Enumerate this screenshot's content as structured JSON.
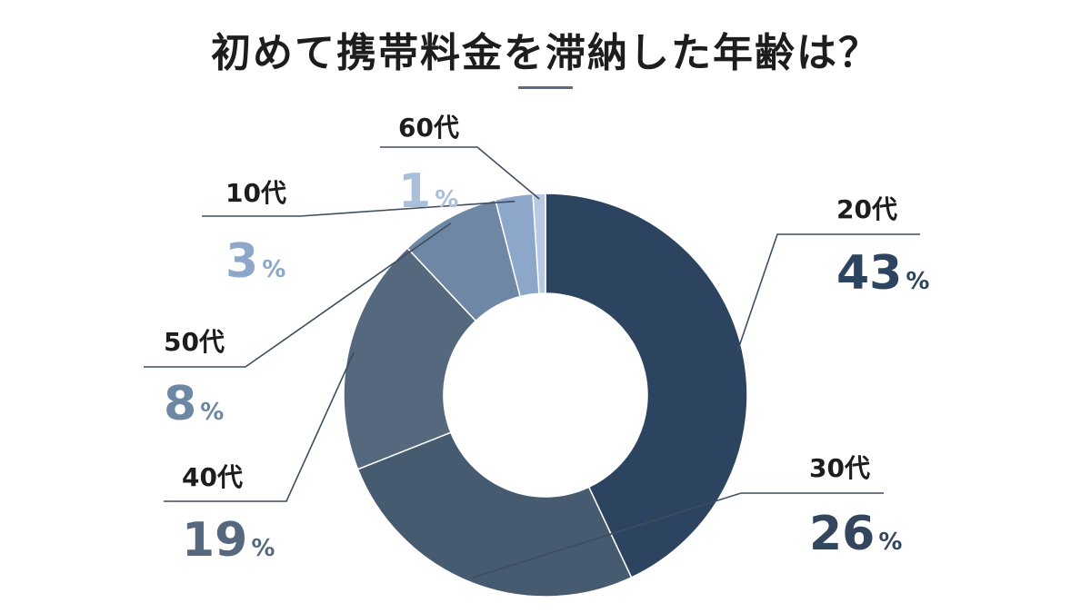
{
  "title": "初めて携帯料金を滞納した年齢は？",
  "chart_data": {
    "type": "pie",
    "donut": true,
    "title": "初めて携帯料金を滞納した年齢は？",
    "categories": [
      "20代",
      "30代",
      "40代",
      "50代",
      "10代",
      "60代"
    ],
    "values": [
      43,
      26,
      19,
      8,
      3,
      1
    ],
    "unit": "%",
    "colors": [
      "#2d4460",
      "#475b70",
      "#56687e",
      "#6d87a4",
      "#8ca7c9",
      "#b7c9e0"
    ],
    "label_colors": [
      "#2d4460",
      "#33465e",
      "#56687e",
      "#6d87a4",
      "#8ca7c9",
      "#a9bfdc"
    ]
  }
}
